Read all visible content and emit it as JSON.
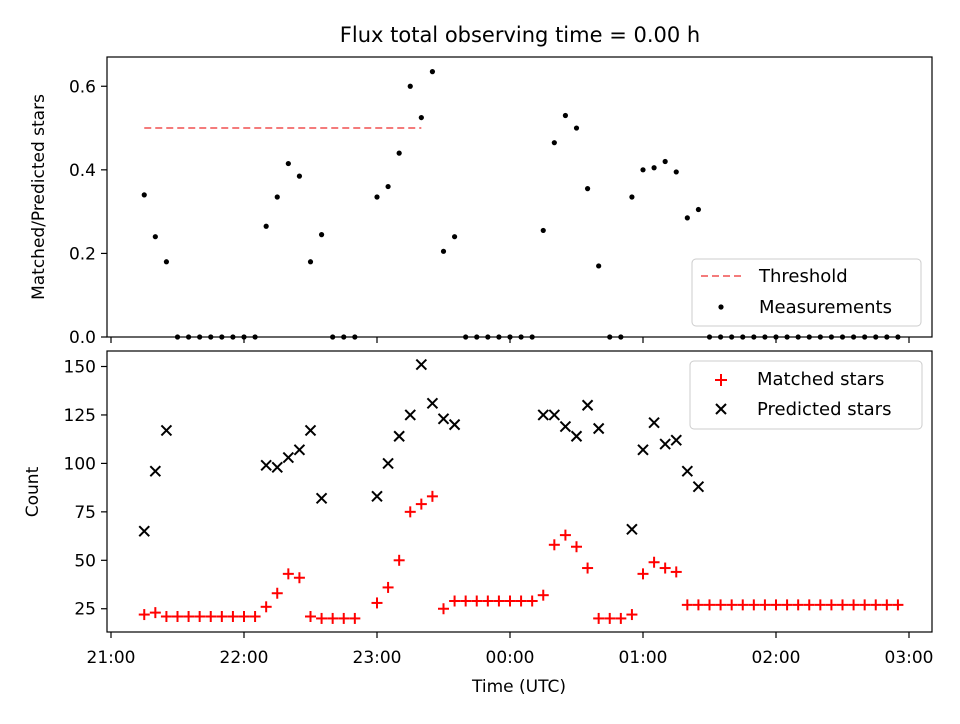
{
  "title": "Flux total observing time = 0.00 h",
  "x_ticks": [
    "21:00",
    "22:00",
    "23:00",
    "00:00",
    "01:00",
    "02:00",
    "03:00"
  ],
  "chart_data": [
    {
      "type": "scatter",
      "ylabel": "Matched/Predicted stars",
      "ylim": [
        0,
        0.67
      ],
      "y_ticks": [
        "0.0",
        "0.2",
        "0.4",
        "0.6"
      ],
      "legend_placement": "lower-right",
      "threshold": {
        "name": "Threshold",
        "value": 0.5,
        "x_range": [
          "21:15",
          "22:55"
        ],
        "color": "#f47b7b"
      },
      "measurements": {
        "name": "Measurements",
        "color": "#000000",
        "points": [
          {
            "x": "21:15",
            "y": 0.34
          },
          {
            "x": "21:20",
            "y": 0.24
          },
          {
            "x": "21:25",
            "y": 0.18
          },
          {
            "x": "21:30",
            "y": 0.0
          },
          {
            "x": "21:35",
            "y": 0.0
          },
          {
            "x": "21:40",
            "y": 0.0
          },
          {
            "x": "21:45",
            "y": 0.0
          },
          {
            "x": "21:50",
            "y": 0.0
          },
          {
            "x": "21:55",
            "y": 0.0
          },
          {
            "x": "22:00",
            "y": 0.0
          },
          {
            "x": "22:05",
            "y": 0.0
          },
          {
            "x": "22:10",
            "y": 0.265
          },
          {
            "x": "22:15",
            "y": 0.335
          },
          {
            "x": "22:20",
            "y": 0.415
          },
          {
            "x": "22:25",
            "y": 0.385
          },
          {
            "x": "22:30",
            "y": 0.18
          },
          {
            "x": "22:35",
            "y": 0.245
          },
          {
            "x": "22:40",
            "y": 0.0
          },
          {
            "x": "22:45",
            "y": 0.0
          },
          {
            "x": "22:50",
            "y": 0.0
          },
          {
            "x": "23:00",
            "y": 0.335
          },
          {
            "x": "23:05",
            "y": 0.36
          },
          {
            "x": "23:10",
            "y": 0.44
          },
          {
            "x": "23:15",
            "y": 0.6
          },
          {
            "x": "23:20",
            "y": 0.525
          },
          {
            "x": "23:25",
            "y": 0.635
          },
          {
            "x": "23:30",
            "y": 0.205
          },
          {
            "x": "23:35",
            "y": 0.24
          },
          {
            "x": "23:40",
            "y": 0.0
          },
          {
            "x": "23:45",
            "y": 0.0
          },
          {
            "x": "23:50",
            "y": 0.0
          },
          {
            "x": "23:55",
            "y": 0.0
          },
          {
            "x": "00:00",
            "y": 0.0
          },
          {
            "x": "00:05",
            "y": 0.0
          },
          {
            "x": "00:10",
            "y": 0.0
          },
          {
            "x": "00:15",
            "y": 0.255
          },
          {
            "x": "00:20",
            "y": 0.465
          },
          {
            "x": "00:25",
            "y": 0.53
          },
          {
            "x": "00:30",
            "y": 0.5
          },
          {
            "x": "00:35",
            "y": 0.355
          },
          {
            "x": "00:40",
            "y": 0.17
          },
          {
            "x": "00:45",
            "y": 0.0
          },
          {
            "x": "00:50",
            "y": 0.0
          },
          {
            "x": "00:55",
            "y": 0.335
          },
          {
            "x": "01:00",
            "y": 0.4
          },
          {
            "x": "01:05",
            "y": 0.405
          },
          {
            "x": "01:10",
            "y": 0.42
          },
          {
            "x": "01:15",
            "y": 0.395
          },
          {
            "x": "01:20",
            "y": 0.285
          },
          {
            "x": "01:25",
            "y": 0.305
          },
          {
            "x": "01:30",
            "y": 0.0
          },
          {
            "x": "01:35",
            "y": 0.0
          },
          {
            "x": "01:40",
            "y": 0.0
          },
          {
            "x": "01:45",
            "y": 0.0
          },
          {
            "x": "01:50",
            "y": 0.0
          },
          {
            "x": "01:55",
            "y": 0.0
          },
          {
            "x": "02:00",
            "y": 0.0
          },
          {
            "x": "02:05",
            "y": 0.0
          },
          {
            "x": "02:10",
            "y": 0.0
          },
          {
            "x": "02:15",
            "y": 0.0
          },
          {
            "x": "02:20",
            "y": 0.0
          },
          {
            "x": "02:25",
            "y": 0.0
          },
          {
            "x": "02:30",
            "y": 0.0
          },
          {
            "x": "02:35",
            "y": 0.0
          },
          {
            "x": "02:40",
            "y": 0.0
          },
          {
            "x": "02:45",
            "y": 0.0
          },
          {
            "x": "02:50",
            "y": 0.0
          },
          {
            "x": "02:55",
            "y": 0.0
          }
        ]
      }
    },
    {
      "type": "scatter",
      "xlabel": "Time (UTC)",
      "ylabel": "Count",
      "ylim": [
        13,
        158
      ],
      "y_ticks": [
        "25",
        "50",
        "75",
        "100",
        "125",
        "150"
      ],
      "legend_placement": "upper-right",
      "series": [
        {
          "name": "Matched stars",
          "marker": "plus",
          "color": "#ff0000",
          "points": [
            {
              "x": "21:15",
              "y": 22
            },
            {
              "x": "21:20",
              "y": 23
            },
            {
              "x": "21:25",
              "y": 21
            },
            {
              "x": "21:30",
              "y": 21
            },
            {
              "x": "21:35",
              "y": 21
            },
            {
              "x": "21:40",
              "y": 21
            },
            {
              "x": "21:45",
              "y": 21
            },
            {
              "x": "21:50",
              "y": 21
            },
            {
              "x": "21:55",
              "y": 21
            },
            {
              "x": "22:00",
              "y": 21
            },
            {
              "x": "22:05",
              "y": 21
            },
            {
              "x": "22:10",
              "y": 26
            },
            {
              "x": "22:15",
              "y": 33
            },
            {
              "x": "22:20",
              "y": 43
            },
            {
              "x": "22:25",
              "y": 41
            },
            {
              "x": "22:30",
              "y": 21
            },
            {
              "x": "22:35",
              "y": 20
            },
            {
              "x": "22:40",
              "y": 20
            },
            {
              "x": "22:45",
              "y": 20
            },
            {
              "x": "22:50",
              "y": 20
            },
            {
              "x": "23:00",
              "y": 28
            },
            {
              "x": "23:05",
              "y": 36
            },
            {
              "x": "23:10",
              "y": 50
            },
            {
              "x": "23:15",
              "y": 75
            },
            {
              "x": "23:20",
              "y": 79
            },
            {
              "x": "23:25",
              "y": 83
            },
            {
              "x": "23:30",
              "y": 25
            },
            {
              "x": "23:35",
              "y": 29
            },
            {
              "x": "23:40",
              "y": 29
            },
            {
              "x": "23:45",
              "y": 29
            },
            {
              "x": "23:50",
              "y": 29
            },
            {
              "x": "23:55",
              "y": 29
            },
            {
              "x": "00:00",
              "y": 29
            },
            {
              "x": "00:05",
              "y": 29
            },
            {
              "x": "00:10",
              "y": 29
            },
            {
              "x": "00:15",
              "y": 32
            },
            {
              "x": "00:20",
              "y": 58
            },
            {
              "x": "00:25",
              "y": 63
            },
            {
              "x": "00:30",
              "y": 57
            },
            {
              "x": "00:35",
              "y": 46
            },
            {
              "x": "00:40",
              "y": 20
            },
            {
              "x": "00:45",
              "y": 20
            },
            {
              "x": "00:50",
              "y": 20
            },
            {
              "x": "00:55",
              "y": 22
            },
            {
              "x": "01:00",
              "y": 43
            },
            {
              "x": "01:05",
              "y": 49
            },
            {
              "x": "01:10",
              "y": 46
            },
            {
              "x": "01:15",
              "y": 44
            },
            {
              "x": "01:20",
              "y": 27
            },
            {
              "x": "01:25",
              "y": 27
            },
            {
              "x": "01:30",
              "y": 27
            },
            {
              "x": "01:35",
              "y": 27
            },
            {
              "x": "01:40",
              "y": 27
            },
            {
              "x": "01:45",
              "y": 27
            },
            {
              "x": "01:50",
              "y": 27
            },
            {
              "x": "01:55",
              "y": 27
            },
            {
              "x": "02:00",
              "y": 27
            },
            {
              "x": "02:05",
              "y": 27
            },
            {
              "x": "02:10",
              "y": 27
            },
            {
              "x": "02:15",
              "y": 27
            },
            {
              "x": "02:20",
              "y": 27
            },
            {
              "x": "02:25",
              "y": 27
            },
            {
              "x": "02:30",
              "y": 27
            },
            {
              "x": "02:35",
              "y": 27
            },
            {
              "x": "02:40",
              "y": 27
            },
            {
              "x": "02:45",
              "y": 27
            },
            {
              "x": "02:50",
              "y": 27
            },
            {
              "x": "02:55",
              "y": 27
            }
          ]
        },
        {
          "name": "Predicted stars",
          "marker": "x",
          "color": "#000000",
          "points": [
            {
              "x": "21:15",
              "y": 65
            },
            {
              "x": "21:20",
              "y": 96
            },
            {
              "x": "21:25",
              "y": 117
            },
            {
              "x": "22:10",
              "y": 99
            },
            {
              "x": "22:15",
              "y": 98
            },
            {
              "x": "22:20",
              "y": 103
            },
            {
              "x": "22:25",
              "y": 107
            },
            {
              "x": "22:30",
              "y": 117
            },
            {
              "x": "22:35",
              "y": 82
            },
            {
              "x": "23:00",
              "y": 83
            },
            {
              "x": "23:05",
              "y": 100
            },
            {
              "x": "23:10",
              "y": 114
            },
            {
              "x": "23:15",
              "y": 125
            },
            {
              "x": "23:20",
              "y": 151
            },
            {
              "x": "23:25",
              "y": 131
            },
            {
              "x": "23:30",
              "y": 123
            },
            {
              "x": "23:35",
              "y": 120
            },
            {
              "x": "00:15",
              "y": 125
            },
            {
              "x": "00:20",
              "y": 125
            },
            {
              "x": "00:25",
              "y": 119
            },
            {
              "x": "00:30",
              "y": 114
            },
            {
              "x": "00:35",
              "y": 130
            },
            {
              "x": "00:40",
              "y": 118
            },
            {
              "x": "00:55",
              "y": 66
            },
            {
              "x": "01:00",
              "y": 107
            },
            {
              "x": "01:05",
              "y": 121
            },
            {
              "x": "01:10",
              "y": 110
            },
            {
              "x": "01:15",
              "y": 112
            },
            {
              "x": "01:20",
              "y": 96
            },
            {
              "x": "01:25",
              "y": 88
            }
          ]
        }
      ]
    }
  ]
}
